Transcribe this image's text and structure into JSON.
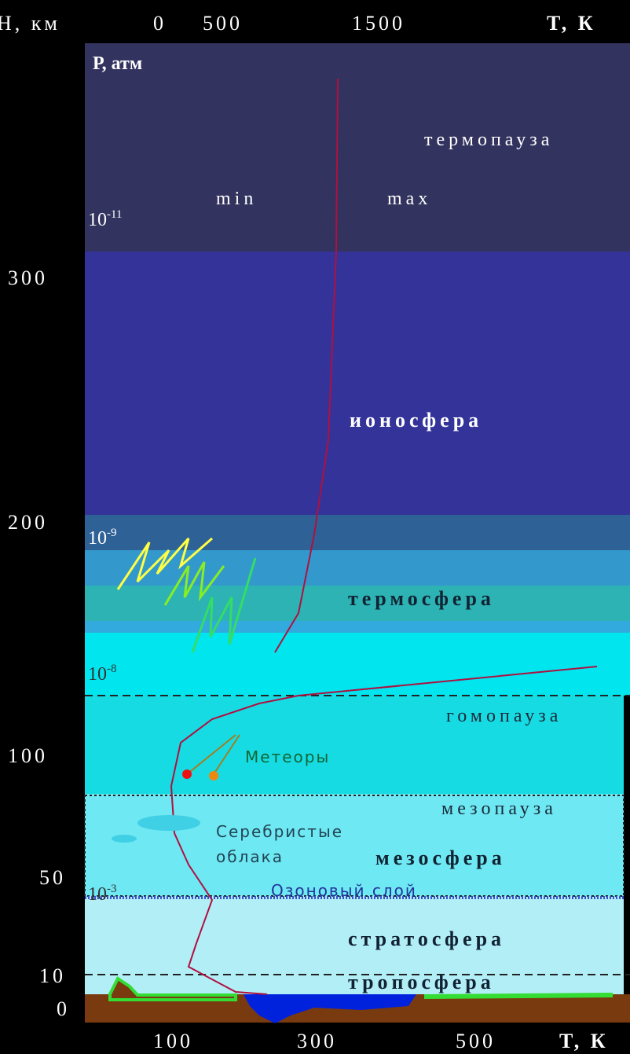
{
  "top_axis": {
    "label": "Н, км",
    "ticks": [
      "0",
      "500",
      "1500"
    ],
    "unit": "Т, К"
  },
  "pressure_label": "Р, атм",
  "left_axis": {
    "ticks": [
      "300",
      "200",
      "100",
      "50",
      "10",
      "0"
    ]
  },
  "bottom_axis": {
    "ticks": [
      "100",
      "300",
      "500"
    ],
    "unit": "Т, К"
  },
  "pressures": [
    {
      "base": "10",
      "exp": "-11"
    },
    {
      "base": "10",
      "exp": "-9"
    },
    {
      "base": "10",
      "exp": "-8"
    },
    {
      "base": "10",
      "exp": "-3"
    }
  ],
  "layers": [
    "термопауза",
    "ионосфера",
    "термосфера",
    "гомопауза",
    "мезопауза",
    "мезосфера",
    "стратосфера",
    "тропосфера"
  ],
  "annotations": {
    "min": "min",
    "max": "max",
    "meteors": "Метеоры",
    "clouds": [
      "Серебристые",
      "облака"
    ],
    "ozone": "Озоновый слой"
  }
}
